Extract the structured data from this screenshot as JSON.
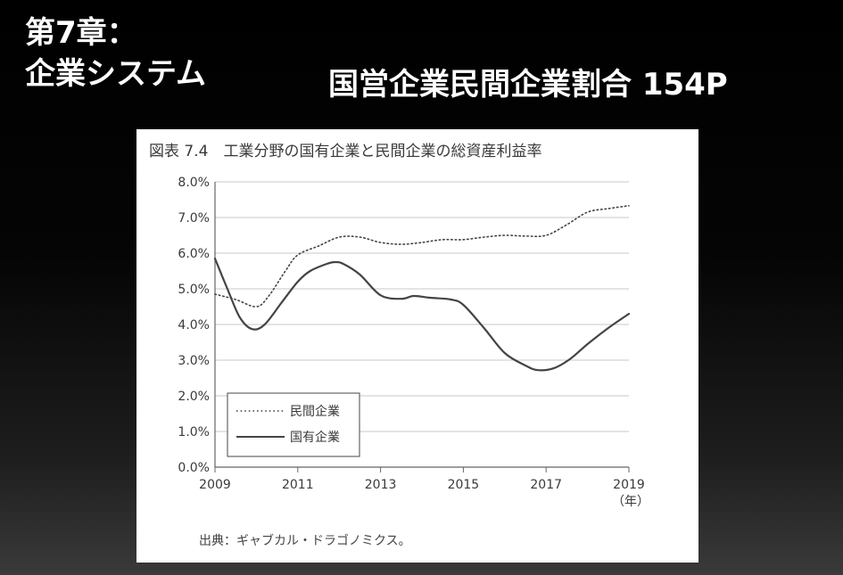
{
  "slide": {
    "chapter_line1": "第7章：",
    "chapter_line2": "企業システム",
    "heading": "国営企業民間企業割合 154P"
  },
  "colors": {
    "background": "#000000",
    "card": "#ffffff",
    "line": "#444444",
    "grid": "#c8c8c8"
  },
  "chart_data": {
    "type": "line",
    "title": "図表 7.4　工業分野の国有企業と民間企業の総資産利益率",
    "xlabel": "",
    "x_unit": "（年）",
    "ylabel": "",
    "xlim": [
      2009,
      2019
    ],
    "ylim": [
      0,
      8
    ],
    "x_ticks": [
      "2009",
      "2011",
      "2013",
      "2015",
      "2017",
      "2019"
    ],
    "y_ticks": [
      "0.0%",
      "1.0%",
      "2.0%",
      "3.0%",
      "4.0%",
      "5.0%",
      "6.0%",
      "7.0%",
      "8.0%"
    ],
    "grid": true,
    "legend_position": "bottom-left",
    "series": [
      {
        "name": "民間企業",
        "style": "dotted",
        "points": [
          [
            2009.0,
            4.85
          ],
          [
            2009.5,
            4.7
          ],
          [
            2010.0,
            4.5
          ],
          [
            2010.3,
            4.8
          ],
          [
            2010.7,
            5.5
          ],
          [
            2011.0,
            5.95
          ],
          [
            2011.5,
            6.2
          ],
          [
            2012.0,
            6.45
          ],
          [
            2012.5,
            6.45
          ],
          [
            2013.0,
            6.3
          ],
          [
            2013.5,
            6.25
          ],
          [
            2014.0,
            6.3
          ],
          [
            2014.5,
            6.38
          ],
          [
            2015.0,
            6.38
          ],
          [
            2015.5,
            6.45
          ],
          [
            2016.0,
            6.5
          ],
          [
            2016.5,
            6.48
          ],
          [
            2017.0,
            6.5
          ],
          [
            2017.5,
            6.8
          ],
          [
            2018.0,
            7.15
          ],
          [
            2018.5,
            7.25
          ],
          [
            2019.0,
            7.33
          ]
        ]
      },
      {
        "name": "国有企業",
        "style": "solid",
        "points": [
          [
            2009.0,
            5.85
          ],
          [
            2009.3,
            5.0
          ],
          [
            2009.6,
            4.2
          ],
          [
            2009.9,
            3.87
          ],
          [
            2010.2,
            4.0
          ],
          [
            2010.6,
            4.6
          ],
          [
            2011.0,
            5.2
          ],
          [
            2011.3,
            5.5
          ],
          [
            2011.7,
            5.7
          ],
          [
            2011.9,
            5.75
          ],
          [
            2012.1,
            5.7
          ],
          [
            2012.5,
            5.4
          ],
          [
            2013.0,
            4.82
          ],
          [
            2013.5,
            4.72
          ],
          [
            2013.8,
            4.8
          ],
          [
            2014.2,
            4.75
          ],
          [
            2014.7,
            4.7
          ],
          [
            2015.0,
            4.55
          ],
          [
            2015.5,
            3.9
          ],
          [
            2016.0,
            3.2
          ],
          [
            2016.5,
            2.85
          ],
          [
            2016.8,
            2.72
          ],
          [
            2017.2,
            2.78
          ],
          [
            2017.6,
            3.05
          ],
          [
            2018.0,
            3.45
          ],
          [
            2018.5,
            3.9
          ],
          [
            2019.0,
            4.3
          ]
        ]
      }
    ],
    "source": "出典：ギャブカル・ドラゴノミクス。"
  }
}
